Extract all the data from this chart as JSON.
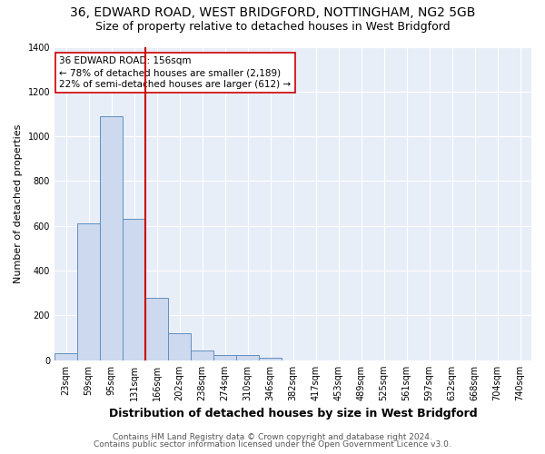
{
  "title1": "36, EDWARD ROAD, WEST BRIDGFORD, NOTTINGHAM, NG2 5GB",
  "title2": "Size of property relative to detached houses in West Bridgford",
  "xlabel": "Distribution of detached houses by size in West Bridgford",
  "ylabel": "Number of detached properties",
  "bar_labels": [
    "23sqm",
    "59sqm",
    "95sqm",
    "131sqm",
    "166sqm",
    "202sqm",
    "238sqm",
    "274sqm",
    "310sqm",
    "346sqm",
    "382sqm",
    "417sqm",
    "453sqm",
    "489sqm",
    "525sqm",
    "561sqm",
    "597sqm",
    "632sqm",
    "668sqm",
    "704sqm",
    "740sqm"
  ],
  "bar_heights": [
    30,
    610,
    1090,
    630,
    280,
    120,
    45,
    22,
    22,
    12,
    0,
    0,
    0,
    0,
    0,
    0,
    0,
    0,
    0,
    0,
    0
  ],
  "bar_color": "#cdd9ee",
  "bar_edgecolor": "#6090c0",
  "vline_color": "#cc0000",
  "annotation_text": "36 EDWARD ROAD: 156sqm\n← 78% of detached houses are smaller (2,189)\n22% of semi-detached houses are larger (612) →",
  "annotation_box_edgecolor": "#cc0000",
  "annotation_fontsize": 7.5,
  "ylim": [
    0,
    1400
  ],
  "yticks": [
    0,
    200,
    400,
    600,
    800,
    1000,
    1200,
    1400
  ],
  "fig_bg_color": "#ffffff",
  "plot_bg_color": "#e8eef8",
  "footer1": "Contains HM Land Registry data © Crown copyright and database right 2024.",
  "footer2": "Contains public sector information licensed under the Open Government Licence v3.0.",
  "title1_fontsize": 10,
  "title2_fontsize": 9,
  "xlabel_fontsize": 9,
  "ylabel_fontsize": 8,
  "tick_fontsize": 7,
  "footer_fontsize": 6.5
}
